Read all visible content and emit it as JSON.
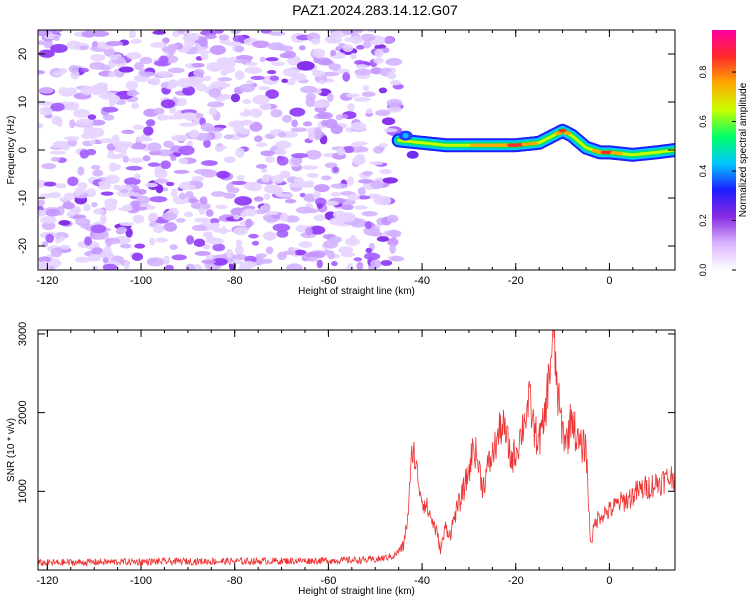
{
  "figure": {
    "title": "PAZ1.2024.283.14.12.G07"
  },
  "chart_data": [
    {
      "type": "heatmap",
      "xlabel": "Height of straight line (km)",
      "ylabel": "Frequency (Hz)",
      "xlim": [
        -122,
        14
      ],
      "ylim": [
        -25,
        25
      ],
      "xticks": [
        -120,
        -100,
        -80,
        -60,
        -40,
        -20,
        0
      ],
      "yticks": [
        -20,
        -10,
        0,
        10,
        20
      ],
      "colorbar": {
        "label": "Normalized spectral amplitude",
        "range": [
          0,
          0.97
        ],
        "ticks": [
          0.0,
          0.2,
          0.4,
          0.6,
          0.8
        ],
        "colormap": [
          "#ffffff",
          "#d9b3ff",
          "#8a2be2",
          "#1e1eff",
          "#00c8ff",
          "#00ff66",
          "#c8ff00",
          "#ffaa00",
          "#ff2a2a",
          "#ff00a0"
        ]
      },
      "noise_region": {
        "x": [
          -122,
          -45
        ],
        "max_amplitude": 0.2
      },
      "signal_track": {
        "x": [
          -45,
          -40,
          -35,
          -30,
          -25,
          -20,
          -15,
          -12,
          -10,
          -8,
          -5,
          -2,
          0,
          5,
          10,
          14
        ],
        "freq": [
          2,
          1.5,
          1,
          1,
          1,
          1,
          1.5,
          3,
          4,
          3,
          0.5,
          -0.5,
          -0.5,
          -1,
          -0.5,
          0
        ],
        "amplitude": [
          0.25,
          0.45,
          0.6,
          0.7,
          0.75,
          0.9,
          0.7,
          0.65,
          0.9,
          0.6,
          0.5,
          0.85,
          0.9,
          0.5,
          0.6,
          0.45
        ]
      }
    },
    {
      "type": "line",
      "xlabel": "Height of straight line (km)",
      "ylabel": "SNR (10 * v/v)",
      "xlim": [
        -122,
        14
      ],
      "ylim": [
        0,
        3050
      ],
      "xticks": [
        -120,
        -100,
        -80,
        -60,
        -40,
        -20,
        0
      ],
      "yticks": [
        1000,
        2000,
        3000
      ],
      "color": "#ee3333",
      "series": [
        {
          "x": [
            -122,
            -110,
            -100,
            -90,
            -80,
            -70,
            -60,
            -50,
            -46,
            -44,
            -43,
            -42,
            -41,
            -40,
            -39,
            -38,
            -37,
            -36,
            -35,
            -34,
            -33,
            -32,
            -31,
            -30,
            -29,
            -28,
            -27,
            -26,
            -25,
            -24,
            -23,
            -22,
            -21,
            -20,
            -19,
            -18,
            -17,
            -16,
            -15,
            -14,
            -13,
            -12,
            -11,
            -10,
            -9,
            -8,
            -7,
            -6,
            -5,
            -4.5,
            -4,
            -3,
            -2,
            0,
            2,
            4,
            6,
            8,
            10,
            12,
            14
          ],
          "y": [
            90,
            100,
            105,
            110,
            110,
            115,
            120,
            130,
            180,
            300,
            700,
            1600,
            1200,
            900,
            800,
            650,
            500,
            250,
            550,
            450,
            700,
            850,
            1050,
            1250,
            1600,
            1350,
            1050,
            1300,
            1450,
            1650,
            1850,
            1700,
            1400,
            1500,
            1700,
            1950,
            2150,
            1750,
            1650,
            1850,
            2400,
            3000,
            2200,
            1750,
            1650,
            2000,
            1650,
            1550,
            1600,
            900,
            350,
            600,
            700,
            750,
            850,
            900,
            1000,
            1050,
            1100,
            1150,
            1200
          ]
        }
      ]
    }
  ]
}
